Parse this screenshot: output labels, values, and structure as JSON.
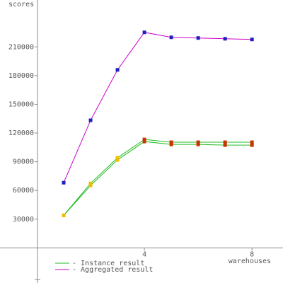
{
  "chart_data": {
    "type": "line",
    "y_label": "scores",
    "x_label": "warehouses",
    "x": [
      1,
      2,
      3,
      4,
      5,
      6,
      7,
      8
    ],
    "series": [
      {
        "name": "- Instance result",
        "color": "#22bb22",
        "marker_colors": [
          "#e8c000",
          "#e8c000",
          "#e8c000",
          "#cc3300",
          "#cc3300",
          "#cc3300",
          "#cc3300",
          "#cc3300"
        ],
        "lines": [
          [
            34000,
            67400,
            94100,
            113300,
            110400,
            110400,
            110400,
            110400
          ],
          [
            34000,
            65200,
            91900,
            111100,
            108100,
            108100,
            107400,
            107400
          ]
        ]
      },
      {
        "name": "- Aggregated result",
        "color": "#cc00cc",
        "marker_colors": [
          "#2020c0",
          "#2020c0",
          "#2020c0",
          "#2020c0",
          "#2020c0",
          "#2020c0",
          "#2020c0",
          "#2020c0"
        ],
        "lines": [
          [
            68100,
            133300,
            186000,
            225200,
            220000,
            219300,
            218500,
            217800
          ]
        ]
      }
    ],
    "xlim": [
      0,
      9.1
    ],
    "xticks": [
      4,
      8
    ],
    "ylim": [
      -33000,
      259000
    ],
    "yticks": [
      30000,
      60000,
      90000,
      120000,
      150000,
      180000,
      210000
    ]
  }
}
